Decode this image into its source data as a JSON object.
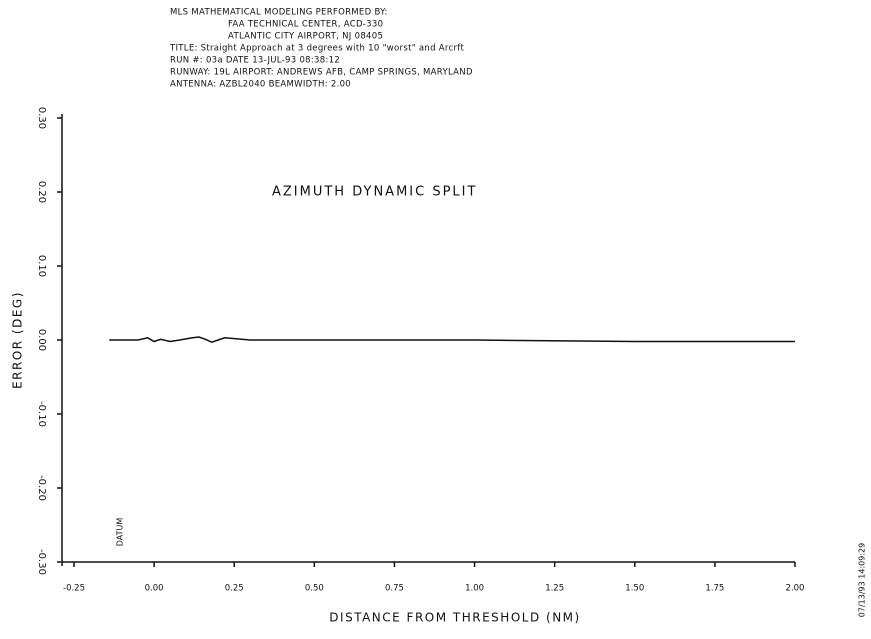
{
  "chart_data": {
    "type": "line",
    "header": [
      "MLS MATHEMATICAL MODELING PERFORMED BY:",
      "FAA TECHNICAL CENTER, ACD-330",
      "ATLANTIC CITY AIRPORT, NJ 08405",
      "TITLE: Straight Approach at 3 degrees with 10 \"worst\" and Arcrft",
      "RUN #: 03a    DATE    13-JUL-93    08:38:12",
      "RUNWAY: 19L    AIRPORT: ANDREWS AFB, CAMP SPRINGS, MARYLAND",
      "ANTENNA: AZBL2040    BEAMWIDTH: 2.00"
    ],
    "title": "AZIMUTH     DYNAMIC     SPLIT",
    "x_label": "DISTANCE FROM THRESHOLD (NM)",
    "y_label": "ERROR (DEG)",
    "annotations": [
      "DATUM",
      "07/13/93 14:09:29"
    ],
    "x": [
      -0.14,
      -0.05,
      -0.02,
      0.0,
      0.02,
      0.05,
      0.08,
      0.12,
      0.14,
      0.16,
      0.18,
      0.2,
      0.22,
      0.3,
      0.5,
      1.0,
      1.5,
      2.0
    ],
    "series": [
      {
        "name": "Error",
        "color": "#111111",
        "values": [
          0,
          0,
          0.003,
          -0.002,
          0.001,
          -0.002,
          0,
          0.003,
          0.004,
          0.001,
          -0.003,
          0,
          0.003,
          0,
          0,
          0,
          -0.002,
          -0.002
        ]
      }
    ],
    "xlim": [
      -0.25,
      2.0
    ],
    "xticks": [
      {
        "value": -0.25,
        "label": "-0.25"
      },
      {
        "value": 0,
        "label": "0.00"
      },
      0.25,
      {
        "value": 0.5,
        "label": "0.50"
      },
      0.75,
      {
        "value": 1,
        "label": "1.00"
      },
      1.25,
      {
        "value": 1.5,
        "label": "1.50"
      },
      1.75,
      {
        "value": 2,
        "label": "2.00"
      }
    ],
    "ylim": [
      -0.3,
      0.3
    ],
    "yticks": [
      {
        "value": 0.3,
        "label": "0.30"
      },
      {
        "value": 0.2,
        "label": "0.20"
      },
      {
        "value": 0.1,
        "label": "0.10"
      },
      {
        "value": 0,
        "label": "0.00"
      },
      {
        "value": -0.1,
        "label": "-0.10"
      },
      {
        "value": -0.2,
        "label": "-0.20"
      },
      {
        "value": -0.3,
        "label": "-0.30"
      }
    ],
    "grid": false
  }
}
